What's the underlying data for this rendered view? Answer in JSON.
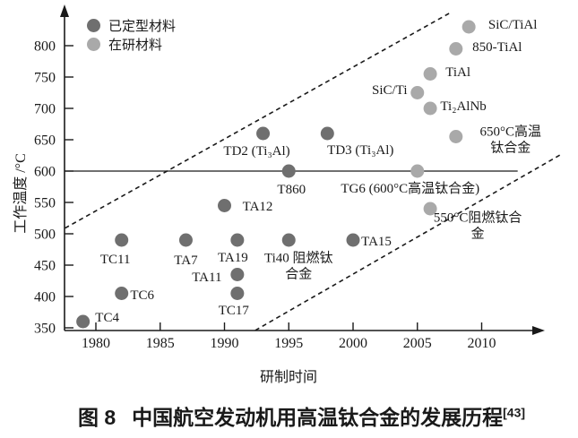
{
  "colors": {
    "finalized_dot": "#6f6f6f",
    "research_dot": "#a9a9a9",
    "axis": "#1a1a1a",
    "text": "#1a1a1a",
    "background": "#ffffff"
  },
  "legend": {
    "items": [
      {
        "label": "已定型材料",
        "series": "finalized"
      },
      {
        "label": "在研材料",
        "series": "research"
      }
    ]
  },
  "axes": {
    "x_label": "研制时间",
    "y_label": "工作温度 /°C",
    "x_ticks": [
      1980,
      1985,
      1990,
      1995,
      2000,
      2005,
      2010
    ],
    "y_ticks": [
      350,
      400,
      450,
      500,
      550,
      600,
      650,
      700,
      750,
      800
    ]
  },
  "caption": {
    "figure_no": "图 8",
    "title": "中国航空发动机用高温钛合金的发展历程",
    "reference": "[43]"
  },
  "chart_data": {
    "type": "scatter",
    "title": "",
    "xlabel": "研制时间",
    "ylabel": "工作温度 /°C",
    "xlim": [
      1978,
      2013
    ],
    "ylim": [
      340,
      860
    ],
    "grid": false,
    "legend_position": "top-left",
    "reference_line": {
      "y": 600,
      "x1": 1977.6,
      "x2": 2012.8,
      "style": "solid"
    },
    "dashed_lines": [
      {
        "x1": 1977.6,
        "y1": 509,
        "x2": 2007.6,
        "y2": 853
      },
      {
        "x1": 1992.4,
        "y1": 346,
        "x2": 2016.2,
        "y2": 627
      }
    ],
    "series": [
      {
        "name": "已定型材料",
        "key": "finalized",
        "points": [
          {
            "label": "TC4",
            "x": 1979,
            "y": 360,
            "label_dx": 27,
            "label_dy": -4
          },
          {
            "label": "TC6",
            "x": 1982,
            "y": 405,
            "label_dx": 23,
            "label_dy": 2
          },
          {
            "label": "TC11",
            "x": 1982,
            "y": 490,
            "label_dx": -7,
            "label_dy": 22
          },
          {
            "label": "TA7",
            "x": 1987,
            "y": 490,
            "label_dx": 0,
            "label_dy": 23
          },
          {
            "label": "TA12",
            "x": 1990,
            "y": 545,
            "label_dx": 37,
            "label_dy": 1
          },
          {
            "label": "TA19",
            "x": 1991,
            "y": 490,
            "label_dx": -5,
            "label_dy": 20
          },
          {
            "label": "TA11",
            "x": 1991,
            "y": 435,
            "label_dx": -34,
            "label_dy": 3
          },
          {
            "label": "TC17",
            "x": 1991,
            "y": 405,
            "label_dx": -4,
            "label_dy": 19
          },
          {
            "label": "TD2 (Ti₃Al)",
            "x": 1993,
            "y": 660,
            "label_dx": -7,
            "label_dy": 20
          },
          {
            "label": "T860",
            "x": 1995,
            "y": 600,
            "label_dx": 3,
            "label_dy": 21
          },
          {
            "label": "Ti40 阻燃钛\n合金",
            "x": 1995,
            "y": 490,
            "label_dx": 11,
            "label_dy": 30
          },
          {
            "label": "TD3 (Ti₃Al)",
            "x": 1998,
            "y": 660,
            "label_dx": 37,
            "label_dy": 19
          },
          {
            "label": "TA15",
            "x": 2000,
            "y": 490,
            "label_dx": 26,
            "label_dy": 2
          }
        ]
      },
      {
        "name": "在研材料",
        "key": "research",
        "points": [
          {
            "label": "SiC/Ti",
            "x": 2005,
            "y": 725,
            "label_dx": -31,
            "label_dy": -3
          },
          {
            "label": "TG6 (600°C高温钛合金)",
            "x": 2005,
            "y": 600,
            "label_dx": -8,
            "label_dy": 20
          },
          {
            "label": "TiAl",
            "x": 2006,
            "y": 755,
            "label_dx": 31,
            "label_dy": -2
          },
          {
            "label": "Ti₂AlNb",
            "x": 2006,
            "y": 700,
            "label_dx": 37,
            "label_dy": -2
          },
          {
            "label": "550°C阻燃钛合金",
            "x": 2006,
            "y": 540,
            "label_dx": 53,
            "label_dy": 20
          },
          {
            "label": "850-TiAl",
            "x": 2008,
            "y": 795,
            "label_dx": 46,
            "label_dy": -2
          },
          {
            "label": "650°C高温\n钛合金",
            "x": 2008,
            "y": 655,
            "label_dx": 61,
            "label_dy": 4
          },
          {
            "label": "SiC/TiAl",
            "x": 2009,
            "y": 830,
            "label_dx": 49,
            "label_dy": -2
          }
        ]
      }
    ]
  }
}
